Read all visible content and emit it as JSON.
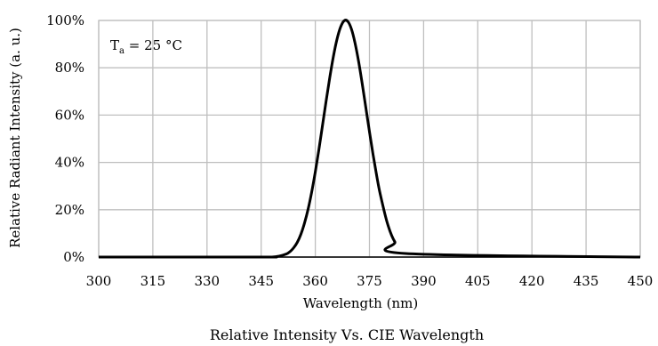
{
  "chart_data": {
    "type": "line",
    "xlabel": "Wavelength (nm)",
    "ylabel": "Relative Radiant Intensity (a. u.)",
    "caption": "Relative Intensity Vs. CIE Wavelength",
    "annotation": {
      "main": "T",
      "sub": "a",
      "rest": " = 25 °C"
    },
    "xlim": [
      300,
      450
    ],
    "ylim": [
      0,
      100
    ],
    "x_ticks": [
      300,
      315,
      330,
      345,
      360,
      375,
      390,
      405,
      420,
      435,
      450
    ],
    "y_ticks": [
      0,
      20,
      40,
      60,
      80,
      100
    ],
    "y_tick_labels": [
      "0%",
      "20%",
      "40%",
      "60%",
      "80%",
      "100%"
    ],
    "grid": true,
    "line_color": "#000000",
    "grid_color": "#bfbfbf",
    "series": [
      {
        "x": [
          300,
          345,
          348,
          350,
          352,
          353,
          354,
          355,
          356,
          357,
          358,
          359,
          360,
          361,
          362,
          363,
          364,
          365,
          366,
          367,
          368,
          369,
          370,
          371,
          372,
          373,
          374,
          375,
          376,
          377,
          378,
          380,
          382,
          385,
          450
        ],
        "y": [
          0,
          0,
          0,
          0.4,
          1.3,
          2.3,
          3.9,
          6.2,
          9.6,
          14.3,
          20.2,
          27.5,
          36,
          45.5,
          55.7,
          66,
          75.8,
          84.7,
          92,
          97.2,
          99.9,
          99.6,
          96.4,
          90.5,
          82.6,
          73.2,
          63.1,
          53,
          43.3,
          34.4,
          26.5,
          14.1,
          6.5,
          1.5,
          0
        ]
      }
    ]
  }
}
